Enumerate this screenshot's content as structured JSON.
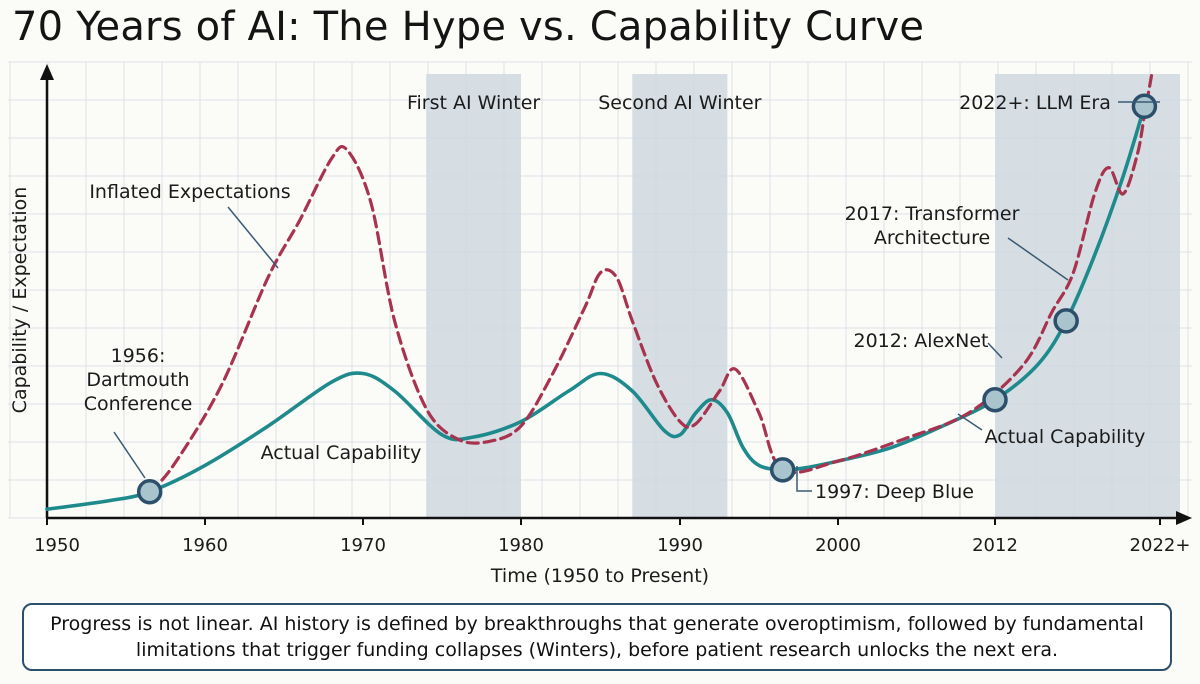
{
  "title": "70 Years of AI: The Hype vs. Capability Curve",
  "caption": "Progress is not linear. AI history is defined by breakthroughs that generate overoptimism, followed by fundamental limitations that trigger funding collapses (Winters), before patient research unlocks the next era.",
  "colors": {
    "capability": "#1f8a8c",
    "expectation": "#a8334f",
    "winter_band": "#cfd8e0",
    "marker_fill": "#a9c4cd",
    "marker_stroke": "#2c4f6b",
    "grid": "#dde2e6"
  },
  "chart_data": {
    "type": "line",
    "xlabel": "Time (1950 to Present)",
    "ylabel": "Capability / Expectation",
    "x_ticks": [
      "1950",
      "1960",
      "1970",
      "1980",
      "1990",
      "2000",
      "2012",
      "2022+"
    ],
    "xlim": [
      1950,
      2025
    ],
    "ylim": [
      0,
      100
    ],
    "grid": true,
    "shaded_regions": [
      {
        "label": "First AI Winter",
        "start": 1974,
        "end": 1980
      },
      {
        "label": "Second AI Winter",
        "start": 1987,
        "end": 1993
      },
      {
        "label": "",
        "start": 2012,
        "end": 2025
      }
    ],
    "series": [
      {
        "name": "Actual Capability",
        "style": "solid",
        "points": [
          [
            1950,
            2
          ],
          [
            1954,
            4
          ],
          [
            1956.5,
            6
          ],
          [
            1960,
            12
          ],
          [
            1964,
            21
          ],
          [
            1968,
            31
          ],
          [
            1970,
            33
          ],
          [
            1972,
            29
          ],
          [
            1975,
            19
          ],
          [
            1977,
            18.5
          ],
          [
            1980,
            22
          ],
          [
            1983,
            29
          ],
          [
            1985,
            33
          ],
          [
            1987,
            29
          ],
          [
            1989,
            20
          ],
          [
            1990,
            19
          ],
          [
            1991,
            24
          ],
          [
            1992,
            27
          ],
          [
            1993,
            24
          ],
          [
            1994,
            16
          ],
          [
            1995,
            12
          ],
          [
            1996.5,
            11
          ],
          [
            1998,
            11.5
          ],
          [
            2000,
            13
          ],
          [
            2004,
            16
          ],
          [
            2008,
            21
          ],
          [
            2012,
            27
          ],
          [
            2015,
            35
          ],
          [
            2017,
            45
          ],
          [
            2019,
            60
          ],
          [
            2021,
            78
          ],
          [
            2022.5,
            94
          ]
        ]
      },
      {
        "name": "Inflated Expectations",
        "style": "dashed",
        "points": [
          [
            1956.5,
            6
          ],
          [
            1958,
            12
          ],
          [
            1961,
            30
          ],
          [
            1964,
            55
          ],
          [
            1966,
            68
          ],
          [
            1968,
            82
          ],
          [
            1969,
            84
          ],
          [
            1970.5,
            72
          ],
          [
            1972,
            45
          ],
          [
            1974,
            25
          ],
          [
            1976,
            18
          ],
          [
            1978,
            17.5
          ],
          [
            1980,
            21
          ],
          [
            1982,
            33
          ],
          [
            1984,
            48
          ],
          [
            1985,
            56
          ],
          [
            1986,
            55
          ],
          [
            1987,
            45
          ],
          [
            1988.5,
            31
          ],
          [
            1990,
            22
          ],
          [
            1991,
            21.5
          ],
          [
            1992.5,
            29
          ],
          [
            1993.5,
            34
          ],
          [
            1995,
            24
          ],
          [
            1996.5,
            11
          ],
          [
            2000,
            13
          ],
          [
            2005,
            18
          ],
          [
            2010,
            24
          ],
          [
            2014,
            35
          ],
          [
            2016,
            47
          ],
          [
            2017.5,
            56
          ],
          [
            2019,
            74
          ],
          [
            2020,
            80
          ],
          [
            2021,
            74
          ],
          [
            2022,
            83
          ],
          [
            2022.5,
            92
          ],
          [
            2023,
            101
          ]
        ]
      }
    ],
    "milestones": [
      {
        "year": 1956.5,
        "value": 6,
        "label": "1956:\nDartmouth\nConference"
      },
      {
        "year": 1996.5,
        "value": 11,
        "label": "1997: Deep Blue"
      },
      {
        "year": 2012,
        "value": 27,
        "label": "2012: AlexNet"
      },
      {
        "year": 2017,
        "value": 45,
        "label": "2017: Transformer\nArchitecture"
      },
      {
        "year": 2022.5,
        "value": 94,
        "label": "2022+: LLM Era"
      }
    ],
    "annotations": [
      "Inflated Expectations",
      "Actual Capability",
      "Actual Capability"
    ]
  }
}
